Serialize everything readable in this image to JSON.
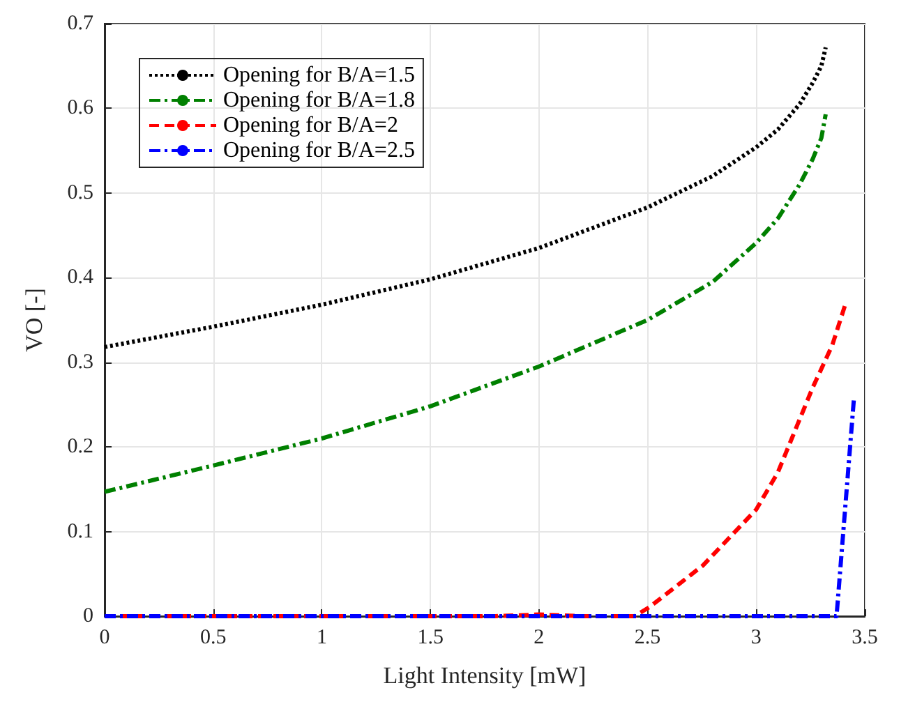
{
  "chart_data": {
    "type": "line",
    "xlabel": "Light Intensity [mW]",
    "ylabel": "VO [-]",
    "xlim": [
      0,
      3.5
    ],
    "xticks": [
      0,
      0.5,
      1,
      1.5,
      2,
      2.5,
      3,
      3.5
    ],
    "ylim": [
      0,
      0.7
    ],
    "yticks": [
      0,
      0.1,
      0.2,
      0.3,
      0.4,
      0.5,
      0.6,
      0.7
    ],
    "grid": true,
    "legend": "top left",
    "marker": "none",
    "series": [
      {
        "name": "Opening for B/A=1.5",
        "color": "#000000",
        "line_style": "dotted",
        "x": [
          0,
          0.5,
          1,
          1.5,
          2,
          2.5,
          2.8,
          3,
          3.1,
          3.2,
          3.26,
          3.3,
          3.32
        ],
        "values": [
          0.318,
          0.342,
          0.368,
          0.398,
          0.435,
          0.483,
          0.52,
          0.554,
          0.575,
          0.605,
          0.63,
          0.65,
          0.672
        ]
      },
      {
        "name": "Opening for B/A=1.8",
        "color": "#008000",
        "line_style": "dashdot",
        "x": [
          0,
          0.5,
          1,
          1.5,
          2,
          2.5,
          2.8,
          3,
          3.1,
          3.2,
          3.26,
          3.3,
          3.32
        ],
        "values": [
          0.147,
          0.178,
          0.21,
          0.248,
          0.295,
          0.35,
          0.395,
          0.441,
          0.47,
          0.51,
          0.54,
          0.565,
          0.593
        ]
      },
      {
        "name": "Opening for B/A=2",
        "color": "#ff0000",
        "line_style": "dashed",
        "x": [
          0,
          1.8,
          2,
          2.2,
          2.44,
          2.51,
          2.755,
          3,
          3.1,
          3.26,
          3.35,
          3.41
        ],
        "values": [
          0,
          0,
          0.002,
          0,
          0,
          0.011,
          0.06,
          0.126,
          0.17,
          0.27,
          0.32,
          0.368
        ]
      },
      {
        "name": "Opening for B/A=2.5",
        "color": "#0000ff",
        "line_style": "dashdot",
        "x": [
          0,
          3.37,
          3.45
        ],
        "values": [
          0,
          0,
          0.257
        ]
      }
    ]
  }
}
